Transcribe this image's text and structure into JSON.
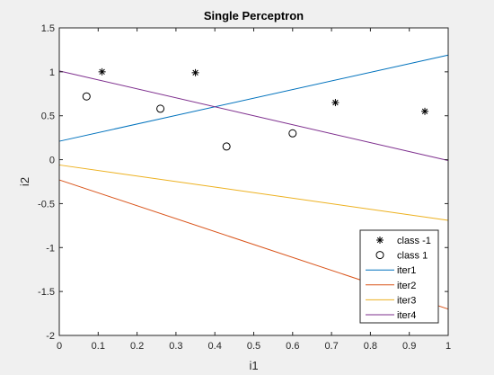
{
  "chart_data": {
    "type": "line",
    "title": "Single Perceptron",
    "xlabel": "i1",
    "ylabel": "i2",
    "xlim": [
      0,
      1
    ],
    "ylim": [
      -2,
      1.5
    ],
    "xticks": [
      "0",
      "0.1",
      "0.2",
      "0.3",
      "0.4",
      "0.5",
      "0.6",
      "0.7",
      "0.8",
      "0.9",
      "1"
    ],
    "yticks": [
      "-2",
      "-1.5",
      "-1",
      "-0.5",
      "0",
      "0.5",
      "1",
      "1.5"
    ],
    "grid": false,
    "legend_position": "bottom-right",
    "scatter_series": [
      {
        "name": "class -1",
        "marker": "asterisk",
        "color": "#000000",
        "points": [
          [
            0.11,
            1.0
          ],
          [
            0.35,
            0.99
          ],
          [
            0.71,
            0.65
          ],
          [
            0.94,
            0.55
          ]
        ]
      },
      {
        "name": "class 1",
        "marker": "circle",
        "color": "#000000",
        "points": [
          [
            0.07,
            0.72
          ],
          [
            0.26,
            0.58
          ],
          [
            0.43,
            0.15
          ],
          [
            0.6,
            0.3
          ]
        ]
      }
    ],
    "line_series": [
      {
        "name": "iter1",
        "color": "#0072BD",
        "x": [
          0,
          1
        ],
        "y": [
          0.21,
          1.19
        ]
      },
      {
        "name": "iter2",
        "color": "#D95319",
        "x": [
          0,
          1
        ],
        "y": [
          -0.23,
          -1.7
        ]
      },
      {
        "name": "iter3",
        "color": "#EDB120",
        "x": [
          0,
          1
        ],
        "y": [
          -0.06,
          -0.69
        ]
      },
      {
        "name": "iter4",
        "color": "#7E2F8E",
        "x": [
          0,
          1
        ],
        "y": [
          1.01,
          -0.01
        ]
      }
    ]
  }
}
